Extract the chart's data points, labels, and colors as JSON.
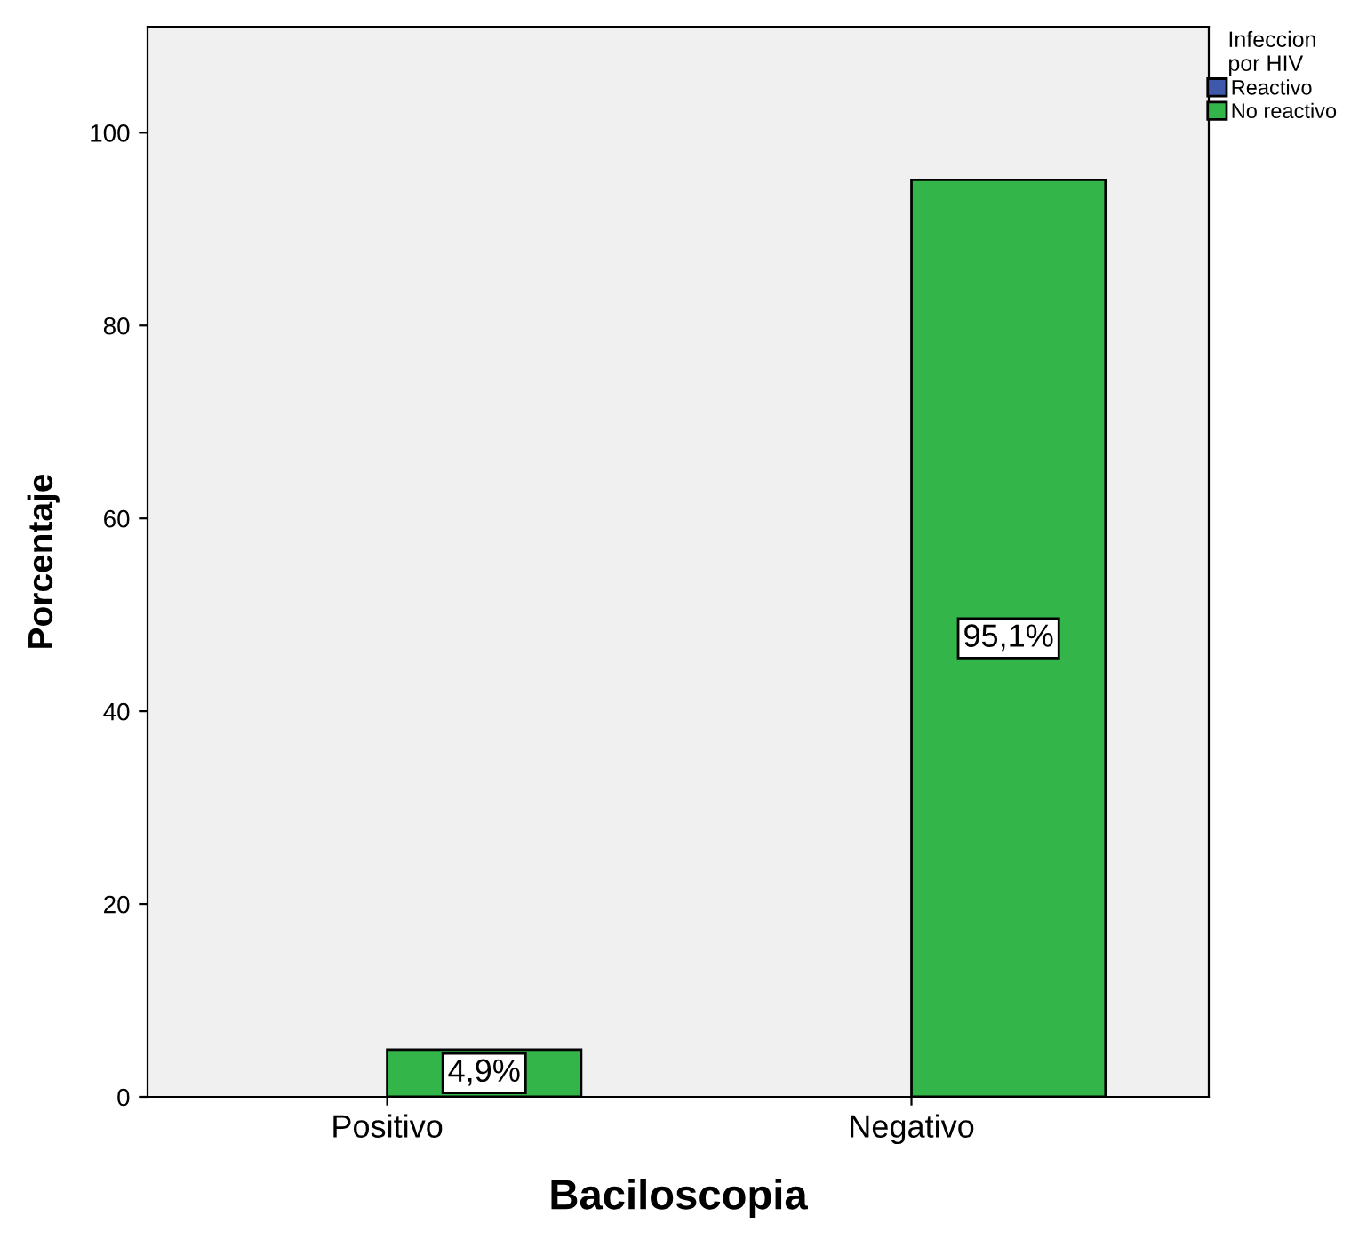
{
  "chart_data": {
    "type": "bar",
    "xlabel": "Baciloscopia",
    "ylabel": "Porcentaje",
    "legend_title": "Infeccion\npor HIV",
    "categories": [
      "Positivo",
      "Negativo"
    ],
    "series": [
      {
        "name": "Reactivo",
        "color": "#3e58ac",
        "values": [
          null,
          null
        ]
      },
      {
        "name": "No reactivo",
        "color": "#33b54a",
        "values": [
          4.9,
          95.1
        ],
        "value_labels": [
          "4,9%",
          "95,1%"
        ]
      }
    ],
    "ylim": [
      0,
      111
    ],
    "yticks": [
      0,
      20,
      40,
      60,
      80,
      100
    ],
    "grid": false,
    "legend": "top right"
  }
}
